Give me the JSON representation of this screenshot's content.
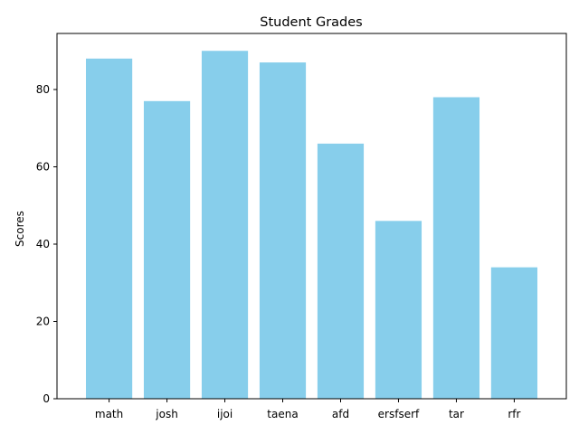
{
  "chart_data": {
    "type": "bar",
    "title": "Student Grades",
    "xlabel": "",
    "ylabel": "Scores",
    "categories": [
      "math",
      "josh",
      "ijoi",
      "taena",
      "afd",
      "ersfserf",
      "tar",
      "rfr"
    ],
    "values": [
      88,
      77,
      90,
      87,
      66,
      46,
      78,
      34
    ],
    "ylim": [
      0,
      94.5
    ],
    "yticks": [
      0,
      20,
      40,
      60,
      80
    ],
    "bar_color": "#87ceeb",
    "grid": false
  }
}
